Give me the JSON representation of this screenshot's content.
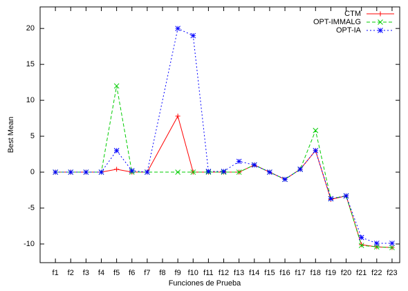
{
  "chart_data": {
    "type": "line",
    "xlabel": "Funciones de Prueba",
    "ylabel": "Best Mean",
    "x": [
      1,
      2,
      3,
      4,
      5,
      6,
      7,
      9,
      10,
      11,
      12,
      13,
      14,
      15,
      16,
      17,
      18,
      19,
      20,
      21,
      22,
      23
    ],
    "xlim": [
      0,
      23.5
    ],
    "xticks": [
      {
        "value": 1,
        "label": "f1"
      },
      {
        "value": 2,
        "label": "f2"
      },
      {
        "value": 3,
        "label": "f3"
      },
      {
        "value": 4,
        "label": "f4"
      },
      {
        "value": 5,
        "label": "f5"
      },
      {
        "value": 6,
        "label": "f6"
      },
      {
        "value": 7,
        "label": "f7"
      },
      {
        "value": 8,
        "label": "f8"
      },
      {
        "value": 9,
        "label": "f9"
      },
      {
        "value": 10,
        "label": "f10"
      },
      {
        "value": 11,
        "label": "f11"
      },
      {
        "value": 12,
        "label": "f12"
      },
      {
        "value": 13,
        "label": "f13"
      },
      {
        "value": 14,
        "label": "f14"
      },
      {
        "value": 15,
        "label": "f15"
      },
      {
        "value": 16,
        "label": "f16"
      },
      {
        "value": 17,
        "label": "f17"
      },
      {
        "value": 18,
        "label": "f18"
      },
      {
        "value": 19,
        "label": "f19"
      },
      {
        "value": 20,
        "label": "f20"
      },
      {
        "value": 21,
        "label": "f21"
      },
      {
        "value": 22,
        "label": "f22"
      },
      {
        "value": 23,
        "label": "f23"
      }
    ],
    "ylim": [
      -12.6,
      23
    ],
    "yticks": [
      -10,
      -5,
      0,
      5,
      10,
      15,
      20
    ],
    "legend": "top-right",
    "series": [
      {
        "name": "CTM",
        "color": "#ff0000",
        "marker": "plus",
        "dash": "solid",
        "values": [
          0,
          0,
          0,
          0,
          0.4,
          0,
          0,
          7.8,
          0,
          0,
          0,
          0,
          1,
          0,
          -1,
          0.4,
          3,
          -3.8,
          -3.3,
          -10.1,
          -10.4,
          -10.5
        ]
      },
      {
        "name": "OPT-IMMALG",
        "color": "#00cc00",
        "marker": "cross",
        "dash": "dashed",
        "values": [
          0,
          0,
          0,
          0,
          12,
          0,
          0,
          0,
          0,
          0,
          0,
          0,
          1,
          0,
          -1,
          0.4,
          5.8,
          -3.7,
          -3.3,
          -10.2,
          -10.4,
          -10.5
        ]
      },
      {
        "name": "OPT-IA",
        "color": "#0000ff",
        "marker": "star",
        "dash": "dotted",
        "values": [
          0,
          0,
          0,
          0,
          3,
          0.2,
          0,
          20,
          19,
          0.1,
          0.1,
          1.5,
          1,
          0,
          -1,
          0.4,
          3,
          -3.7,
          -3.3,
          -9.1,
          -9.9,
          -9.9
        ]
      }
    ]
  }
}
